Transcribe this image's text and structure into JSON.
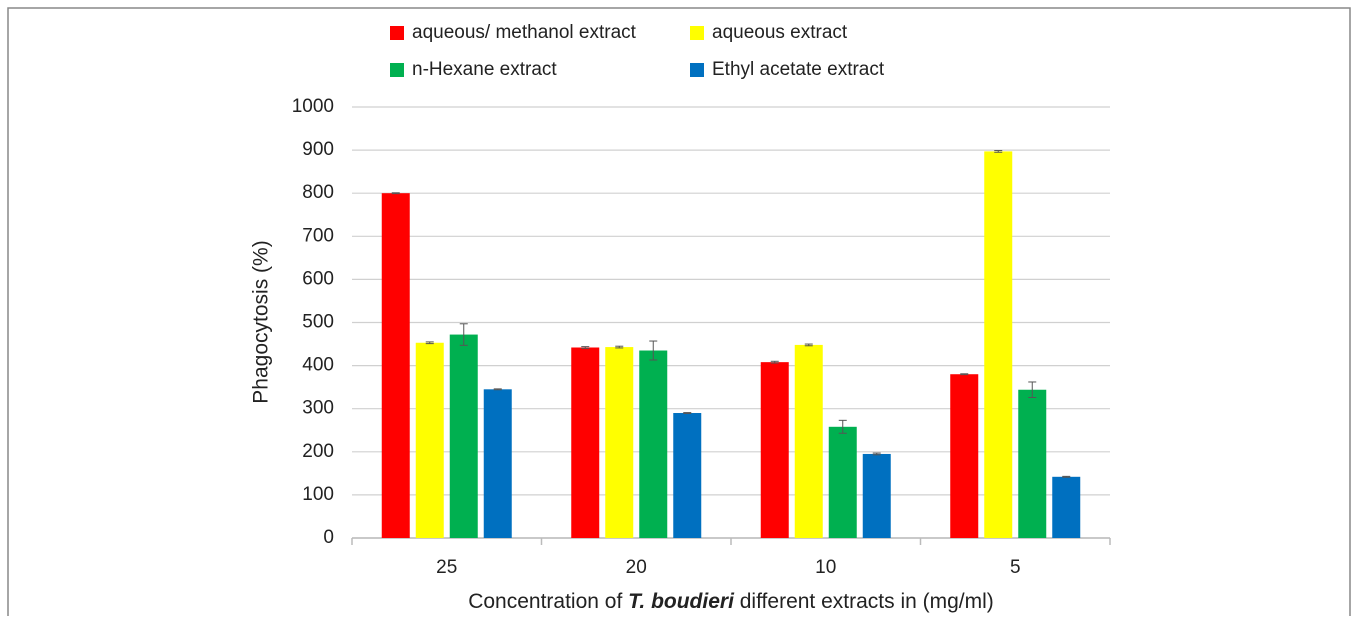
{
  "chart_data": {
    "type": "bar",
    "ylabel": "Phagocytosis (%)",
    "xlabel": [
      "Concentration of ",
      "T. boudieri",
      " different extracts in (mg/ml)"
    ],
    "categories": [
      "25",
      "20",
      "10",
      "5"
    ],
    "series": [
      {
        "name": "aqueous/ methanol extract",
        "color": "#ff0000",
        "values": [
          800,
          442,
          408,
          380
        ],
        "errors": [
          1,
          2,
          2,
          1
        ]
      },
      {
        "name": "aqueous extract",
        "color": "#ffff00",
        "values": [
          453,
          443,
          448,
          897
        ],
        "errors": [
          2,
          2,
          2,
          2
        ]
      },
      {
        "name": "n-Hexane extract",
        "color": "#00b050",
        "values": [
          472,
          435,
          258,
          344
        ],
        "errors": [
          25,
          22,
          15,
          18
        ]
      },
      {
        "name": "Ethyl acetate extract",
        "color": "#0070c0",
        "values": [
          345,
          290,
          195,
          142
        ],
        "errors": [
          1,
          1,
          2,
          1
        ]
      }
    ],
    "ylim": [
      0,
      1000
    ],
    "yticks": [
      0,
      100,
      200,
      300,
      400,
      500,
      600,
      700,
      800,
      900,
      1000
    ],
    "grid": true,
    "legend": "top"
  }
}
